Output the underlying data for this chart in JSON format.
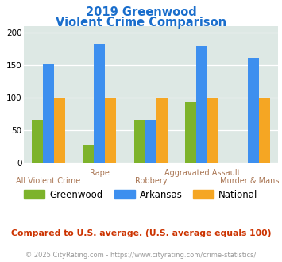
{
  "title_line1": "2019 Greenwood",
  "title_line2": "Violent Crime Comparison",
  "categories": [
    "All Violent Crime",
    "Rape",
    "Robbery",
    "Aggravated Assault",
    "Murder & Mans..."
  ],
  "greenwood": [
    65,
    26,
    65,
    93,
    0
  ],
  "arkansas": [
    153,
    182,
    65,
    179,
    161
  ],
  "national": [
    100,
    100,
    100,
    100,
    100
  ],
  "colors": {
    "greenwood": "#7db32b",
    "arkansas": "#3d8fef",
    "national": "#f5a623"
  },
  "ylim": [
    0,
    210
  ],
  "yticks": [
    0,
    50,
    100,
    150,
    200
  ],
  "bg_color": "#dde8e4",
  "footnote": "Compared to U.S. average. (U.S. average equals 100)",
  "copyright": "© 2025 CityRating.com - https://www.cityrating.com/crime-statistics/",
  "title_color": "#1a6ecc",
  "footnote_color": "#cc3300",
  "copyright_color": "#999999",
  "upper_xlabel_color": "#aa7755",
  "lower_xlabel_color": "#aa7755",
  "upper_labels": [
    "Rape",
    "Aggravated Assault"
  ],
  "lower_labels": [
    "All Violent Crime",
    "Robbery",
    "Murder & Mans..."
  ],
  "upper_indices": [
    1,
    3
  ],
  "lower_indices": [
    0,
    2,
    4
  ]
}
